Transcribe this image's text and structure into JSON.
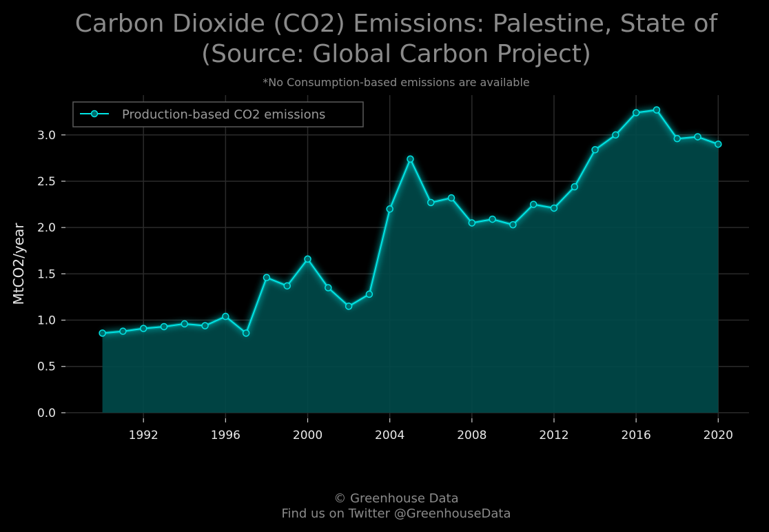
{
  "chart_data": {
    "type": "area",
    "title_line1": "Carbon Dioxide (CO2) Emissions: Palestine, State of",
    "title_line2": "(Source: Global Carbon Project)",
    "subtitle": "*No Consumption-based emissions are available",
    "xlabel": "",
    "ylabel": "MtCO2/year",
    "xlim": [
      1988.2,
      2021.5
    ],
    "ylim": [
      -0.06,
      3.43
    ],
    "x_ticks": [
      1992,
      1996,
      2000,
      2004,
      2008,
      2012,
      2016,
      2020
    ],
    "y_ticks": [
      0.0,
      0.5,
      1.0,
      1.5,
      2.0,
      2.5,
      3.0
    ],
    "y_tick_labels": [
      "0.0",
      "0.5",
      "1.0",
      "1.5",
      "2.0",
      "2.5",
      "3.0"
    ],
    "grid": true,
    "legend_position": "upper-left",
    "series": [
      {
        "name": "Production-based CO2 emissions",
        "color": "#00e5e5",
        "fill_color": "#004a4a",
        "x": [
          1990,
          1991,
          1992,
          1993,
          1994,
          1995,
          1996,
          1997,
          1998,
          1999,
          2000,
          2001,
          2002,
          2003,
          2004,
          2005,
          2006,
          2007,
          2008,
          2009,
          2010,
          2011,
          2012,
          2013,
          2014,
          2015,
          2016,
          2017,
          2018,
          2019,
          2020
        ],
        "values": [
          0.86,
          0.88,
          0.91,
          0.93,
          0.96,
          0.94,
          1.04,
          0.86,
          1.46,
          1.37,
          1.66,
          1.35,
          1.15,
          1.28,
          2.2,
          2.74,
          2.27,
          2.32,
          2.05,
          2.09,
          2.03,
          2.25,
          2.21,
          2.44,
          2.84,
          3.0,
          3.24,
          3.27,
          2.96,
          2.98,
          2.9
        ]
      }
    ]
  },
  "footer": {
    "line1": "© Greenhouse Data",
    "line2": "Find us on Twitter @GreenhouseData"
  }
}
